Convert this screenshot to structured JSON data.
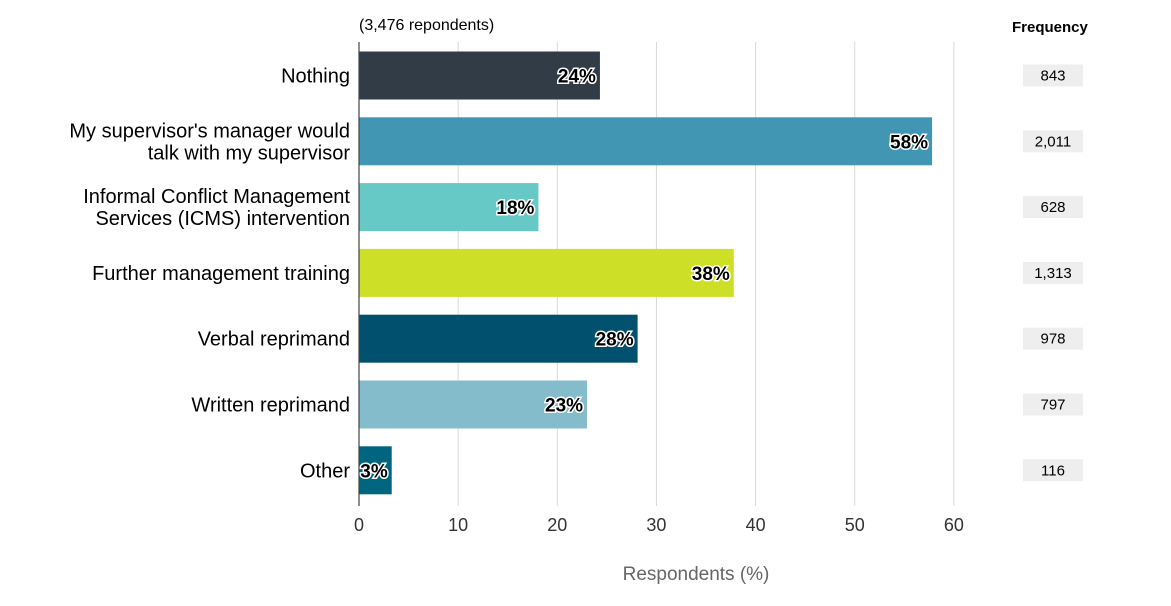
{
  "chart_data": {
    "type": "bar",
    "orientation": "horizontal",
    "note": "(3,476 repondents)",
    "frequency_header": "Frequency",
    "xlabel": "Respondents (%)",
    "xlim": [
      0,
      60
    ],
    "xticks": [
      "0",
      "10",
      "20",
      "30",
      "40",
      "50",
      "60"
    ],
    "grid": true,
    "categories": [
      [
        "Nothing"
      ],
      [
        "My supervisor's manager would",
        "talk with my supervisor"
      ],
      [
        "Informal Conflict Management",
        "Services (ICMS) intervention"
      ],
      [
        "Further management training"
      ],
      [
        "Verbal reprimand"
      ],
      [
        "Written reprimand"
      ],
      [
        "Other"
      ]
    ],
    "values": [
      24.3,
      57.8,
      18.1,
      37.8,
      28.1,
      23.0,
      3.3
    ],
    "value_labels": [
      "24%",
      "58%",
      "18%",
      "38%",
      "28%",
      "23%",
      "3%"
    ],
    "colors": [
      "#323c46",
      "#4196b4",
      "#66c9c6",
      "#cddf26",
      "#00506e",
      "#84bccc",
      "#00657f"
    ],
    "frequencies": [
      "843",
      "2,011",
      "628",
      "1,313",
      "978",
      "797",
      "116"
    ]
  }
}
